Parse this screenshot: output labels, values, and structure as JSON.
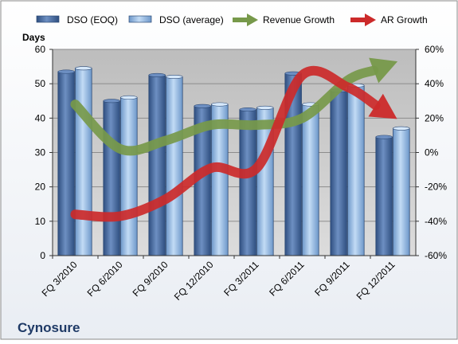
{
  "chart_data": {
    "type": "bar",
    "company": "Cynosure",
    "ylabel": "Days",
    "categories": [
      "FQ 3/2010",
      "FQ 6/2010",
      "FQ 9/2010",
      "FQ 12/2010",
      "FQ 3/2011",
      "FQ 6/2011",
      "FQ 9/2011",
      "FQ 12/2011"
    ],
    "ylim": [
      0,
      60
    ],
    "yticks": [
      "0",
      "10",
      "20",
      "30",
      "40",
      "50",
      "60"
    ],
    "y2lim": [
      -0.6,
      0.6
    ],
    "y2ticks": [
      "-60%",
      "-40%",
      "-20%",
      "0%",
      "20%",
      "40%",
      "60%"
    ],
    "series": [
      {
        "name": "DSO (EOQ)",
        "kind": "bar",
        "color": "#4a6fa5",
        "values": [
          53.5,
          45,
          52.5,
          43.5,
          42.5,
          53,
          48,
          34.5
        ]
      },
      {
        "name": "DSO (average)",
        "kind": "bar",
        "color": "#8fb4dd",
        "values": [
          54.5,
          46,
          52,
          44,
          43,
          44,
          49.5,
          37
        ]
      },
      {
        "name": "Revenue Growth",
        "kind": "line-arrow",
        "axis": "right",
        "color": "#77994a",
        "values": [
          0.28,
          0.02,
          0.07,
          0.16,
          0.16,
          0.2,
          0.42,
          0.52
        ]
      },
      {
        "name": "AR Growth",
        "kind": "line-arrow",
        "axis": "right",
        "color": "#cc2a2a",
        "values": [
          -0.36,
          -0.37,
          -0.27,
          -0.09,
          -0.09,
          0.45,
          0.38,
          0.21
        ]
      }
    ],
    "grid": true,
    "legend_position": "top"
  }
}
